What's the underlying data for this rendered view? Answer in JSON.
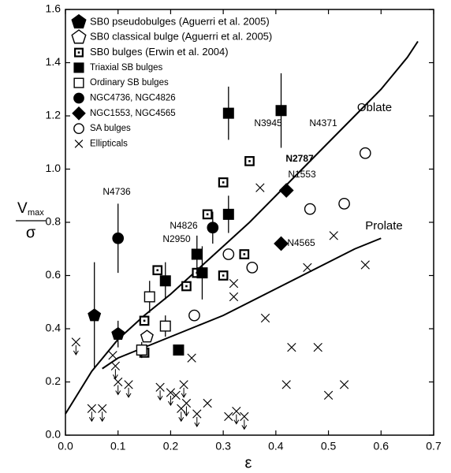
{
  "chart_data": {
    "type": "scatter",
    "x_label": "ε",
    "y_label": {
      "numerator": "V",
      "subscript": "max",
      "denominator": "σ"
    },
    "xlim": [
      0,
      0.7
    ],
    "ylim": [
      0,
      1.6
    ],
    "xticks": [
      {
        "value": 0,
        "label": "0.0"
      },
      0.1,
      0.2,
      0.3,
      0.4,
      0.5,
      0.6,
      0.7
    ],
    "yticks": [
      {
        "value": 0,
        "label": "0.0"
      },
      0.2,
      0.4,
      0.6,
      0.8,
      {
        "value": 1,
        "label": "1.0"
      },
      1.2,
      1.4,
      1.6
    ],
    "legend": "upper left",
    "series": [
      {
        "name": "SB0 pseudobulges (Aguerri et al. 2005)",
        "marker": "pentagon",
        "filled": true,
        "color": "#000000",
        "x": [
          0.055,
          0.1
        ],
        "values": [
          0.45,
          0.38
        ],
        "yerr": [
          0.2,
          0.05
        ]
      },
      {
        "name": "SB0 classical bulge (Aguerri et al. 2005)",
        "marker": "pentagon",
        "filled": false,
        "color": "#000000",
        "x": [
          0.155
        ],
        "values": [
          0.37
        ],
        "yerr": [
          null
        ]
      },
      {
        "name": "SB0 bulges (Erwin et al. 2004)",
        "marker": "dotsquare",
        "filled": false,
        "color": "#000000",
        "x": [
          0.15,
          0.15,
          0.175,
          0.23,
          0.25,
          0.27,
          0.3,
          0.3,
          0.34,
          0.35
        ],
        "values": [
          0.43,
          0.31,
          0.62,
          0.56,
          0.61,
          0.83,
          0.95,
          0.6,
          0.68,
          1.03
        ],
        "yerr": [
          null,
          null,
          null,
          null,
          null,
          null,
          null,
          null,
          null,
          null
        ]
      },
      {
        "name": "Triaxial SB bulges",
        "marker": "square",
        "filled": true,
        "color": "#000000",
        "x": [
          0.31,
          0.41,
          0.31,
          0.25,
          0.26,
          0.19,
          0.215
        ],
        "values": [
          1.21,
          1.22,
          0.83,
          0.68,
          0.61,
          0.58,
          0.32
        ],
        "yerr": [
          0.1,
          0.14,
          0.07,
          0.07,
          0.1,
          0.07,
          null
        ]
      },
      {
        "name": "Ordinary SB bulges",
        "marker": "square",
        "filled": false,
        "color": "#000000",
        "x": [
          0.16,
          0.19,
          0.145
        ],
        "values": [
          0.52,
          0.41,
          0.32
        ],
        "yerr": [
          0.06,
          0.04,
          0.03
        ]
      },
      {
        "name": "NGC4736, NGC4826",
        "marker": "circle",
        "filled": true,
        "color": "#000000",
        "x": [
          0.1,
          0.28
        ],
        "values": [
          0.74,
          0.78
        ],
        "yerr": [
          0.13,
          0.06
        ]
      },
      {
        "name": "NGC1553, NGC4565",
        "marker": "diamond",
        "filled": true,
        "color": "#000000",
        "x": [
          0.42,
          0.41
        ],
        "values": [
          0.92,
          0.72
        ],
        "yerr": [
          null,
          null
        ]
      },
      {
        "name": "SA bulges",
        "marker": "circle",
        "filled": false,
        "color": "#000000",
        "x": [
          0.245,
          0.31,
          0.355,
          0.465,
          0.53,
          0.57
        ],
        "values": [
          0.45,
          0.68,
          0.63,
          0.85,
          0.87,
          1.06
        ],
        "yerr": [
          null,
          null,
          null,
          null,
          null,
          null
        ]
      },
      {
        "name": "Ellipticals",
        "marker": "cross",
        "filled": false,
        "color": "#000000",
        "x": [
          0.37,
          0.32,
          0.32,
          0.38,
          0.46,
          0.51,
          0.57,
          0.43,
          0.48,
          0.5,
          0.53,
          0.42,
          0.24,
          0.02,
          0.09,
          0.095,
          0.1,
          0.05,
          0.07,
          0.12,
          0.18,
          0.2,
          0.225,
          0.22,
          0.23,
          0.25,
          0.27,
          0.21,
          0.31,
          0.325,
          0.34
        ],
        "values": [
          0.93,
          0.57,
          0.52,
          0.44,
          0.63,
          0.75,
          0.64,
          0.33,
          0.33,
          0.15,
          0.19,
          0.19,
          0.29,
          0.35,
          0.3,
          0.26,
          0.2,
          0.1,
          0.1,
          0.19,
          0.18,
          0.16,
          0.19,
          0.1,
          0.12,
          0.08,
          0.12,
          0.15,
          0.07,
          0.09,
          0.07
        ],
        "yerr": [
          null,
          null,
          null,
          null,
          null,
          null,
          null,
          null,
          null,
          null,
          null,
          null,
          null,
          null,
          null,
          null,
          null,
          null,
          null,
          null,
          null,
          null,
          null,
          null,
          null,
          null,
          null,
          null,
          null,
          null,
          null
        ],
        "upper_limits": [
          false,
          false,
          false,
          false,
          false,
          false,
          false,
          false,
          false,
          false,
          false,
          false,
          false,
          true,
          false,
          true,
          true,
          true,
          true,
          true,
          true,
          true,
          true,
          true,
          true,
          true,
          false,
          false,
          false,
          true,
          true
        ]
      }
    ],
    "curves": [
      {
        "x": [
          0,
          0.025,
          0.05,
          0.1,
          0.15,
          0.2,
          0.25,
          0.3,
          0.35,
          0.4,
          0.45,
          0.5,
          0.55,
          0.6,
          0.65,
          0.67
        ],
        "values": [
          0.08,
          0.16,
          0.24,
          0.36,
          0.45,
          0.53,
          0.62,
          0.71,
          0.8,
          0.9,
          1.0,
          1.1,
          1.2,
          1.3,
          1.42,
          1.48
        ],
        "color": "#000000"
      },
      {
        "x": [
          0.07,
          0.1,
          0.15,
          0.2,
          0.25,
          0.3,
          0.35,
          0.4,
          0.45,
          0.5,
          0.55,
          0.6
        ],
        "values": [
          0.25,
          0.29,
          0.33,
          0.37,
          0.41,
          0.45,
          0.5,
          0.55,
          0.6,
          0.65,
          0.7,
          0.74
        ],
        "color": "#000000"
      }
    ],
    "annotations": [
      {
        "text": "Oblate",
        "bold": false
      },
      {
        "text": "Prolate",
        "bold": false
      },
      {
        "text": "N4736",
        "bold": false
      },
      {
        "text": "N4826",
        "bold": false
      },
      {
        "text": "N2950",
        "bold": false
      },
      {
        "text": "N3945",
        "bold": false
      },
      {
        "text": "N4371",
        "bold": false
      },
      {
        "text": "N2787",
        "bold": true
      },
      {
        "text": "N1553",
        "bold": false
      },
      {
        "text": "N4565",
        "bold": false
      }
    ]
  }
}
